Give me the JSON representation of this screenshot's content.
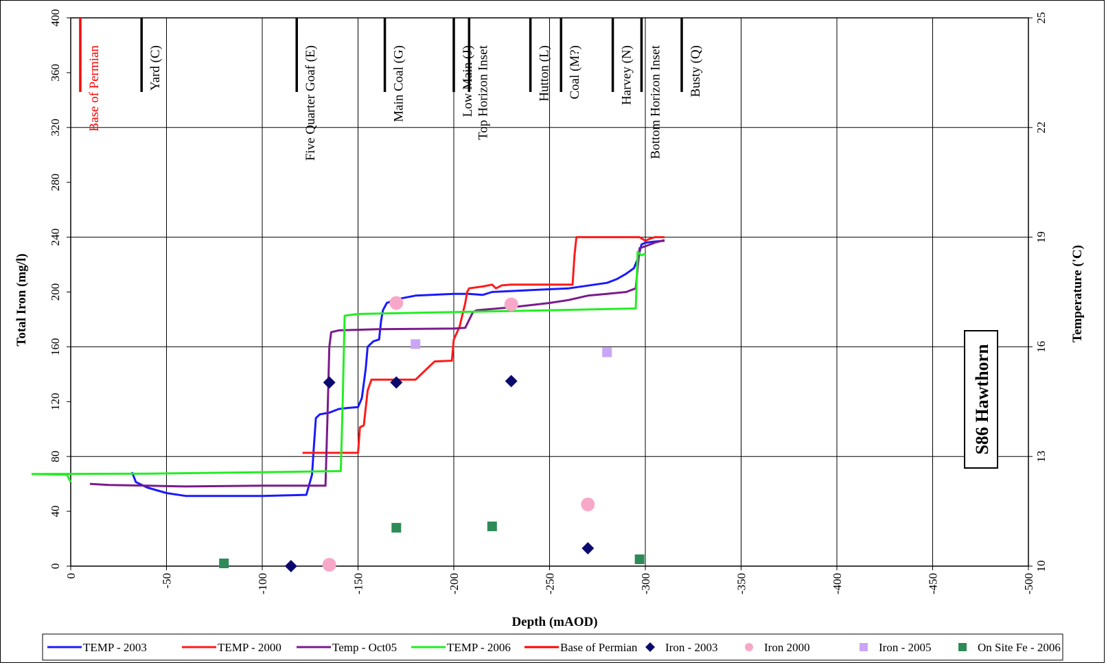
{
  "chart_data": {
    "type": "line",
    "title": "S86 Hawthorn",
    "xlabel": "Depth (mAOD)",
    "ylabel": "Total Iron (mg/l)",
    "y2label": "Temperature  ('C)",
    "xlim": [
      0,
      -500
    ],
    "ylim": [
      0,
      400
    ],
    "y2lim": [
      10,
      25
    ],
    "x_ticks": [
      0,
      -50,
      -100,
      -150,
      -200,
      -250,
      -300,
      -350,
      -400,
      -450,
      -500
    ],
    "y_ticks": [
      0,
      40,
      80,
      120,
      160,
      200,
      240,
      280,
      320,
      360,
      400
    ],
    "y2_ticks": [
      10,
      13,
      16,
      19,
      22,
      25
    ],
    "grid": true,
    "legend_position": "bottom",
    "colors": {
      "temp2003": "#1a1aff",
      "temp2000": "#ff1a1a",
      "tempoct05": "#7a1a8c",
      "temp2006": "#22ee22",
      "permian": "#ff0000",
      "iron2003": "#0a0a6e",
      "iron2000": "#f7a8c8",
      "iron2005": "#c8a6f5",
      "onsite2006": "#2e8b57",
      "horizon": "#000000"
    },
    "horizons": [
      {
        "name": "Base of Permian",
        "depth": -5,
        "color": "#ff0000"
      },
      {
        "name": "Yard (C)",
        "depth": -37
      },
      {
        "name": "Five Quarter Goaf (E)",
        "depth": -118
      },
      {
        "name": "Main Coal (G)",
        "depth": -164
      },
      {
        "name": "Low Main (J)",
        "depth": -200
      },
      {
        "name": "Top Horizon Inset",
        "depth": -208
      },
      {
        "name": "Hutton (L)",
        "depth": -240
      },
      {
        "name": "Coal (M?)",
        "depth": -256
      },
      {
        "name": "Harvey (N)",
        "depth": -283
      },
      {
        "name": "Bottom Horizon Inset",
        "depth": -298
      },
      {
        "name": "Busty (Q)",
        "depth": -319
      }
    ],
    "line_series": [
      {
        "name": "TEMP - 2003",
        "color_key": "temp2003",
        "points": [
          [
            -32,
            12.57
          ],
          [
            -34,
            12.3
          ],
          [
            -40,
            12.15
          ],
          [
            -50,
            12.0
          ],
          [
            -60,
            11.92
          ],
          [
            -80,
            11.92
          ],
          [
            -100,
            11.92
          ],
          [
            -123,
            11.95
          ],
          [
            -126,
            12.5
          ],
          [
            -127,
            13.3
          ],
          [
            -128,
            14.05
          ],
          [
            -130,
            14.15
          ],
          [
            -135,
            14.2
          ],
          [
            -140,
            14.3
          ],
          [
            -145,
            14.33
          ],
          [
            -150,
            14.35
          ],
          [
            -152,
            14.6
          ],
          [
            -154,
            15.4
          ],
          [
            -155,
            16.0
          ],
          [
            -158,
            16.15
          ],
          [
            -161,
            16.2
          ],
          [
            -162,
            16.7
          ],
          [
            -163,
            17.0
          ],
          [
            -165,
            17.2
          ],
          [
            -170,
            17.3
          ],
          [
            -180,
            17.4
          ],
          [
            -200,
            17.45
          ],
          [
            -208,
            17.45
          ],
          [
            -215,
            17.42
          ],
          [
            -220,
            17.5
          ],
          [
            -240,
            17.55
          ],
          [
            -260,
            17.6
          ],
          [
            -280,
            17.75
          ],
          [
            -285,
            17.85
          ],
          [
            -290,
            18.0
          ],
          [
            -294,
            18.15
          ],
          [
            -296,
            18.4
          ],
          [
            -298,
            18.8
          ],
          [
            -300,
            18.85
          ],
          [
            -305,
            18.88
          ],
          [
            -310,
            18.9
          ]
        ]
      },
      {
        "name": "TEMP - 2000",
        "color_key": "temp2000",
        "points": [
          [
            -121,
            13.1
          ],
          [
            -150,
            13.1
          ],
          [
            -151,
            13.8
          ],
          [
            -153,
            13.85
          ],
          [
            -155,
            14.8
          ],
          [
            -157,
            15.1
          ],
          [
            -180,
            15.1
          ],
          [
            -185,
            15.35
          ],
          [
            -190,
            15.6
          ],
          [
            -199,
            15.62
          ],
          [
            -200,
            16.2
          ],
          [
            -203,
            16.55
          ],
          [
            -206,
            17.2
          ],
          [
            -207,
            17.5
          ],
          [
            -208,
            17.6
          ],
          [
            -215,
            17.65
          ],
          [
            -220,
            17.7
          ],
          [
            -222,
            17.6
          ],
          [
            -225,
            17.68
          ],
          [
            -230,
            17.7
          ],
          [
            -262,
            17.7
          ],
          [
            -263,
            18.5
          ],
          [
            -264,
            19.0
          ],
          [
            -270,
            19.0
          ],
          [
            -297,
            19.0
          ],
          [
            -300,
            18.9
          ],
          [
            -302,
            18.95
          ],
          [
            -305,
            19.0
          ],
          [
            -310,
            19.0
          ]
        ]
      },
      {
        "name": "Temp - Oct05",
        "color_key": "tempoct05",
        "points": [
          [
            -10,
            12.25
          ],
          [
            -20,
            12.22
          ],
          [
            -40,
            12.2
          ],
          [
            -60,
            12.18
          ],
          [
            -100,
            12.2
          ],
          [
            -133,
            12.2
          ],
          [
            -134,
            14.0
          ],
          [
            -135,
            16.0
          ],
          [
            -136,
            16.4
          ],
          [
            -140,
            16.45
          ],
          [
            -160,
            16.48
          ],
          [
            -200,
            16.5
          ],
          [
            -206,
            16.52
          ],
          [
            -210,
            16.95
          ],
          [
            -212,
            17.0
          ],
          [
            -230,
            17.08
          ],
          [
            -250,
            17.2
          ],
          [
            -260,
            17.28
          ],
          [
            -270,
            17.4
          ],
          [
            -280,
            17.45
          ],
          [
            -290,
            17.5
          ],
          [
            -295,
            17.6
          ],
          [
            -297,
            18.7
          ],
          [
            -300,
            18.75
          ],
          [
            -305,
            18.85
          ],
          [
            -310,
            18.92
          ]
        ]
      },
      {
        "name": "TEMP - 2006",
        "color_key": "temp2006",
        "points": [
          [
            0,
            12.3
          ],
          [
            2,
            12.5
          ],
          [
            20,
            12.52
          ],
          [
            -40,
            12.53
          ],
          [
            -100,
            12.57
          ],
          [
            -141,
            12.6
          ],
          [
            -142,
            14.5
          ],
          [
            -143,
            16.85
          ],
          [
            -150,
            16.9
          ],
          [
            -200,
            16.95
          ],
          [
            -250,
            17.0
          ],
          [
            -295,
            17.05
          ],
          [
            -296,
            18.6
          ],
          [
            -298,
            18.5
          ],
          [
            -300,
            18.55
          ]
        ]
      }
    ],
    "scatter_series": [
      {
        "name": "Iron - 2003",
        "marker": "diamond",
        "color_key": "iron2003",
        "points": [
          [
            -115,
            0
          ],
          [
            -135,
            134
          ],
          [
            -170,
            134
          ],
          [
            -230,
            135
          ],
          [
            -270,
            13
          ]
        ]
      },
      {
        "name": "Iron 2000",
        "marker": "circle",
        "color_key": "iron2000",
        "points": [
          [
            -135,
            1
          ],
          [
            -170,
            192
          ],
          [
            -230,
            191
          ],
          [
            -270,
            45
          ]
        ]
      },
      {
        "name": "Iron - 2005",
        "marker": "square",
        "color_key": "iron2005",
        "points": [
          [
            -180,
            162
          ],
          [
            -280,
            156
          ]
        ]
      },
      {
        "name": "On Site Fe - 2006",
        "marker": "square",
        "color_key": "onsite2006",
        "points": [
          [
            -80,
            2
          ],
          [
            -170,
            28
          ],
          [
            -220,
            29
          ],
          [
            -297,
            5
          ]
        ]
      }
    ],
    "legend": [
      {
        "label": "TEMP - 2003",
        "kind": "line",
        "color_key": "temp2003"
      },
      {
        "label": "TEMP - 2000",
        "kind": "line",
        "color_key": "temp2000"
      },
      {
        "label": "Temp - Oct05",
        "kind": "line",
        "color_key": "tempoct05"
      },
      {
        "label": "TEMP - 2006",
        "kind": "line",
        "color_key": "temp2006"
      },
      {
        "label": "Base of Permian",
        "kind": "line",
        "color_key": "permian"
      },
      {
        "label": "Iron - 2003",
        "kind": "diamond",
        "color_key": "iron2003"
      },
      {
        "label": "Iron 2000",
        "kind": "circle",
        "color_key": "iron2000"
      },
      {
        "label": "Iron - 2005",
        "kind": "square",
        "color_key": "iron2005"
      },
      {
        "label": "On Site Fe - 2006",
        "kind": "square",
        "color_key": "onsite2006"
      }
    ]
  }
}
